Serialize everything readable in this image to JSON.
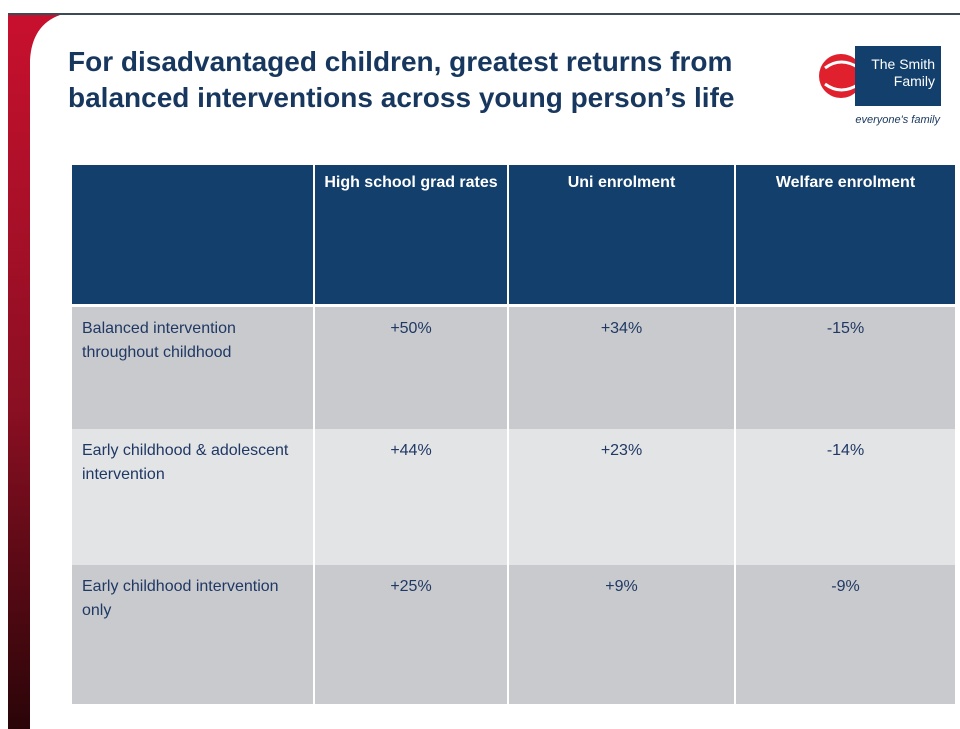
{
  "title": "For disadvantaged children, greatest returns from balanced interventions across young person’s life",
  "logo": {
    "name": "The Smith Family",
    "tagline": "everyone's family"
  },
  "table": {
    "header": [
      "High school grad rates",
      "Uni enrolment",
      "Welfare enrolment"
    ],
    "rows": [
      [
        "Balanced intervention throughout childhood",
        "+50%",
        "+34%",
        "-15%"
      ],
      [
        "Early childhood & adolescent intervention",
        "+44%",
        "+23%",
        "-14%"
      ],
      [
        "Early childhood intervention only",
        "+25%",
        "+9%",
        "-9%"
      ]
    ]
  }
}
